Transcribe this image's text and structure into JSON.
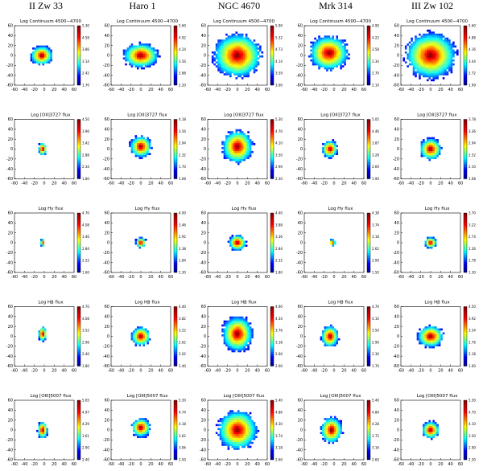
{
  "columns": [
    "II Zw 33",
    "Haro 1",
    "NGC 4670",
    "Mrk 314",
    "III Zw 102"
  ],
  "axis_ticks": [
    -60,
    -40,
    -20,
    0,
    20,
    40,
    60
  ],
  "rows": [
    [
      {
        "title": "Log Continuum 4500−4700",
        "colorbar": [
          "5.30",
          "4.58",
          "3.86",
          "3.14",
          "2.42",
          "1.70"
        ]
      },
      {
        "title": "Log Continuum 4500−4700",
        "colorbar": [
          "5.60",
          "4.92",
          "4.24",
          "3.56",
          "2.88",
          "2.20"
        ]
      },
      {
        "title": "Log Continuum 4500−4700",
        "colorbar": [
          "5.90",
          "5.32",
          "4.73",
          "4.14",
          "3.59",
          "3.00"
        ]
      },
      {
        "title": "Log Continuum 4500−4700",
        "colorbar": [
          "4.90",
          "4.22",
          "3.58",
          "3.34",
          "2.70",
          "2.10"
        ]
      },
      {
        "title": "Log Continuum 4500−4700",
        "colorbar": [
          "5.60",
          "4.88",
          "4.16",
          "3.44",
          "2.72",
          "1.99"
        ]
      }
    ],
    [
      {
        "title": "Log [OII]3727 flux",
        "colorbar": [
          "4.50",
          "3.96",
          "3.42",
          "2.88",
          "2.34",
          "1.80"
        ]
      },
      {
        "title": "Log [OII]3727 flux",
        "colorbar": [
          "4.18",
          "3.56",
          "2.94",
          "2.32",
          "1.70",
          "1.08"
        ]
      },
      {
        "title": "Log [OII]3727 flux",
        "colorbar": [
          "5.30",
          "4.70",
          "4.10",
          "3.50",
          "2.90",
          "2.30"
        ]
      },
      {
        "title": "Log [OII]3727 flux",
        "colorbar": [
          "5.05",
          "4.46",
          "3.87",
          "3.28",
          "2.69",
          "1.90"
        ]
      },
      {
        "title": "Log [OII]3727 flux",
        "colorbar": [
          "3.78",
          "3.36",
          "2.94",
          "2.52",
          "2.10",
          "1.68"
        ]
      }
    ],
    [
      {
        "title": "Log Hγ flux",
        "colorbar": [
          "4.70",
          "4.08",
          "3.46",
          "2.84",
          "2.22",
          "1.60"
        ]
      },
      {
        "title": "Log Hγ flux",
        "colorbar": [
          "4.00",
          "3.46",
          "2.92",
          "2.38",
          "1.84",
          "1.30"
        ]
      },
      {
        "title": "Log Hγ flux",
        "colorbar": [
          "4.40",
          "3.88",
          "3.36",
          "2.84",
          "2.32",
          "1.80"
        ]
      },
      {
        "title": "Log Hγ flux",
        "colorbar": [
          "4.38",
          "3.74",
          "3.18",
          "2.62",
          "2.06",
          "1.50"
        ]
      },
      {
        "title": "Log Hγ flux",
        "colorbar": [
          "3.70",
          "3.22",
          "2.74",
          "2.26",
          "1.78",
          "1.30"
        ]
      }
    ],
    [
      {
        "title": "Log Hβ flux",
        "colorbar": [
          "4.70",
          "4.08",
          "3.52",
          "2.96",
          "2.40",
          "1.80"
        ]
      },
      {
        "title": "Log Hβ flux",
        "colorbar": [
          "4.40",
          "3.82",
          "3.22",
          "2.62",
          "2.02",
          "1.40"
        ]
      },
      {
        "title": "Log Hβ flux",
        "colorbar": [
          "4.90",
          "4.34",
          "3.76",
          "3.18",
          "2.60",
          "2.00"
        ]
      },
      {
        "title": "Log Hβ flux",
        "colorbar": [
          "4.70",
          "4.10",
          "3.50",
          "2.90",
          "2.30",
          "1.70"
        ]
      },
      {
        "title": "Log Hβ flux",
        "colorbar": [
          "4.50",
          "3.92",
          "3.34",
          "2.76",
          "2.18",
          "1.60"
        ]
      }
    ],
    [
      {
        "title": "Log [OIII]5007 flux",
        "colorbar": [
          "5.65",
          "4.97",
          "4.29",
          "3.61",
          "2.90",
          "2.40"
        ]
      },
      {
        "title": "Log [OIII]5007 flux",
        "colorbar": [
          "5.30",
          "4.74",
          "4.18",
          "3.62",
          "3.06",
          "2.50"
        ]
      },
      {
        "title": "Log [OIII]5007 flux",
        "colorbar": [
          "5.40",
          "4.86",
          "4.30",
          "3.74",
          "3.18",
          "2.60"
        ]
      },
      {
        "title": "Log [OIII]5007 flux",
        "colorbar": [
          "5.40",
          "4.84",
          "4.28",
          "3.72",
          "3.16",
          "2.60"
        ]
      },
      {
        "title": "Log [OIII]5007 flux",
        "colorbar": [
          "5.30",
          "4.70",
          "4.10",
          "3.50",
          "2.90",
          "2.30"
        ]
      }
    ]
  ]
}
